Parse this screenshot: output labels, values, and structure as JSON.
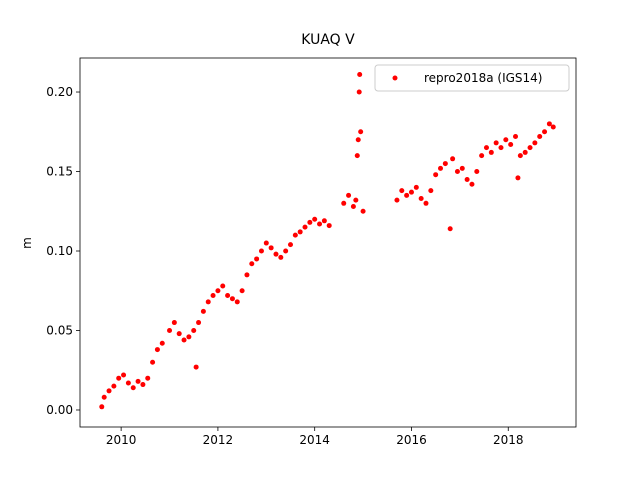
{
  "chart_data": {
    "type": "scatter",
    "title": "KUAQ V",
    "y_label": "m",
    "xlim": [
      2009.15,
      2019.4
    ],
    "xticks": [
      2010,
      2012,
      2014,
      2016,
      2018
    ],
    "ylim": [
      -0.0107,
      0.2214
    ],
    "yticks": [
      {
        "value": 0,
        "label": "0.00"
      },
      0.05,
      {
        "value": 0.1,
        "label": "0.10"
      },
      0.15,
      {
        "value": 0.2,
        "label": "0.20"
      }
    ],
    "legend": "upper right",
    "series": [
      {
        "name": "repro2018a (IGS14)",
        "color": "#ff0000",
        "x": [
          2009.6,
          2009.65,
          2009.75,
          2009.85,
          2009.95,
          2010.05,
          2010.15,
          2010.25,
          2010.35,
          2010.45,
          2010.55,
          2010.65,
          2010.75,
          2010.85,
          2011.0,
          2011.1,
          2011.2,
          2011.3,
          2011.4,
          2011.5,
          2011.55,
          2011.6,
          2011.7,
          2011.8,
          2011.9,
          2012.0,
          2012.1,
          2012.2,
          2012.3,
          2012.4,
          2012.5,
          2012.6,
          2012.7,
          2012.8,
          2012.9,
          2013.0,
          2013.1,
          2013.2,
          2013.3,
          2013.4,
          2013.5,
          2013.6,
          2013.7,
          2013.8,
          2013.9,
          2014.0,
          2014.1,
          2014.2,
          2014.3,
          2014.6,
          2014.7,
          2014.8,
          2014.85,
          2014.88,
          2014.9,
          2014.92,
          2014.93,
          2014.95,
          2015.0,
          2015.7,
          2015.8,
          2015.9,
          2016.0,
          2016.1,
          2016.2,
          2016.3,
          2016.4,
          2016.5,
          2016.6,
          2016.7,
          2016.8,
          2016.85,
          2016.95,
          2017.05,
          2017.15,
          2017.25,
          2017.35,
          2017.45,
          2017.55,
          2017.65,
          2017.75,
          2017.85,
          2017.95,
          2018.05,
          2018.15,
          2018.2,
          2018.25,
          2018.35,
          2018.45,
          2018.55,
          2018.65,
          2018.75,
          2018.85,
          2018.93
        ],
        "values": [
          0.002,
          0.008,
          0.012,
          0.015,
          0.02,
          0.022,
          0.017,
          0.014,
          0.018,
          0.016,
          0.02,
          0.03,
          0.038,
          0.042,
          0.05,
          0.055,
          0.048,
          0.044,
          0.046,
          0.05,
          0.027,
          0.055,
          0.062,
          0.068,
          0.072,
          0.075,
          0.078,
          0.072,
          0.07,
          0.068,
          0.075,
          0.085,
          0.092,
          0.095,
          0.1,
          0.105,
          0.102,
          0.098,
          0.096,
          0.1,
          0.104,
          0.11,
          0.112,
          0.115,
          0.118,
          0.12,
          0.117,
          0.119,
          0.116,
          0.13,
          0.135,
          0.128,
          0.132,
          0.16,
          0.17,
          0.2,
          0.211,
          0.175,
          0.125,
          0.132,
          0.138,
          0.135,
          0.137,
          0.14,
          0.133,
          0.13,
          0.138,
          0.148,
          0.152,
          0.155,
          0.114,
          0.158,
          0.15,
          0.152,
          0.145,
          0.142,
          0.15,
          0.16,
          0.165,
          0.162,
          0.168,
          0.165,
          0.17,
          0.167,
          0.172,
          0.146,
          0.16,
          0.162,
          0.165,
          0.168,
          0.172,
          0.175,
          0.18,
          0.178
        ]
      }
    ]
  }
}
